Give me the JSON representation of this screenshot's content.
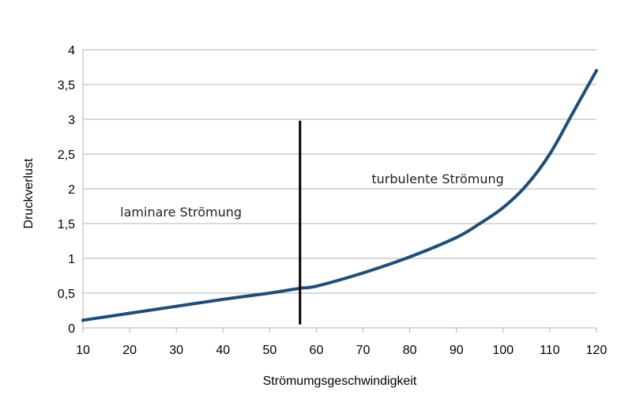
{
  "chart_data": {
    "type": "line",
    "title": "",
    "xlabel": "Strömumgsgeschwindigkeit",
    "ylabel": "Druckverlust",
    "xlim": [
      10,
      120
    ],
    "ylim": [
      0,
      4
    ],
    "x_ticks": [
      10,
      20,
      30,
      40,
      50,
      60,
      70,
      80,
      90,
      100,
      110,
      120
    ],
    "x_tick_labels": [
      "10",
      "20",
      "30",
      "40",
      "50",
      "60",
      "70",
      "80",
      "90",
      "100",
      "110",
      "120"
    ],
    "y_ticks": [
      0,
      0.5,
      1,
      1.5,
      2,
      2.5,
      3,
      3.5,
      4
    ],
    "y_tick_labels": [
      "0",
      "0,5",
      "1",
      "1,5",
      "2",
      "2,5",
      "3",
      "3,5",
      "4"
    ],
    "grid": "horizontal",
    "legend": "none",
    "series": [
      {
        "color": "#1f4e79",
        "x": [
          10,
          20,
          30,
          40,
          50,
          56.5,
          60,
          70,
          80,
          90,
          95,
          100,
          105,
          110,
          115,
          120
        ],
        "y": [
          0.11,
          0.21,
          0.31,
          0.41,
          0.5,
          0.57,
          0.6,
          0.79,
          1.02,
          1.3,
          1.5,
          1.73,
          2.05,
          2.5,
          3.1,
          3.7
        ]
      }
    ],
    "vertical_line": {
      "x": 56.5,
      "y_from": 0.05,
      "y_to": 2.98,
      "color": "#000000"
    },
    "annotations": [
      {
        "text": "laminare Strömung",
        "x": 31,
        "y": 1.6
      },
      {
        "text": "turbulente Strömung",
        "x": 86,
        "y": 2.08
      }
    ]
  }
}
